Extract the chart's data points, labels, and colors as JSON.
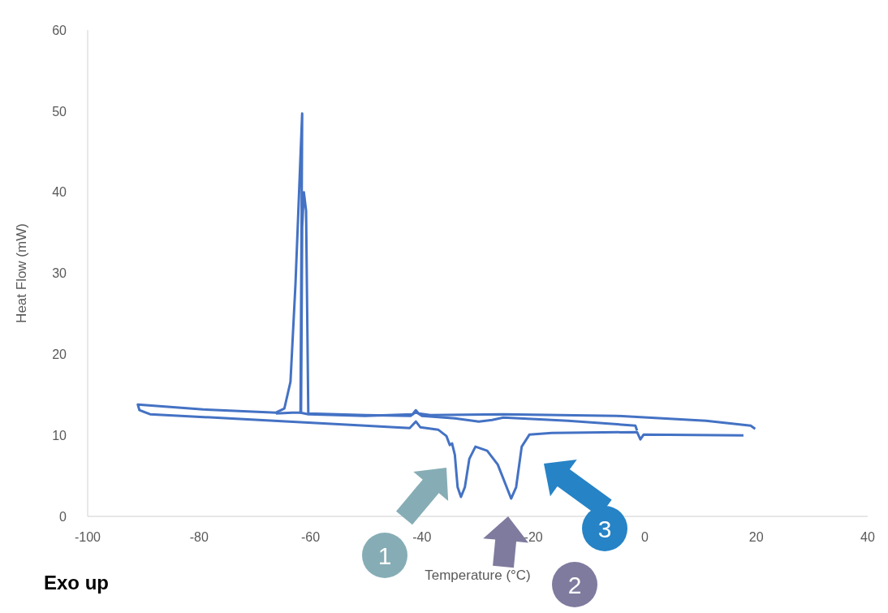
{
  "chart_data": {
    "type": "line",
    "xlabel": "Temperature (°C)",
    "ylabel": "Heat Flow (mW)",
    "xlim": [
      -100,
      40
    ],
    "xticks": [
      -100,
      -80,
      -60,
      -40,
      -20,
      0,
      20,
      40
    ],
    "ylim": [
      0,
      60
    ],
    "yticks": [
      0,
      10,
      20,
      30,
      40,
      50,
      60
    ],
    "grid": false,
    "marker": "none",
    "line_style": "solid",
    "annotations": [
      "Exo up",
      "1",
      "2",
      "3"
    ],
    "series": [
      {
        "color": "#4472c4",
        "x": [
          19.8,
          19.0,
          11.0,
          -5.0,
          -25.4,
          -38.5,
          -40.6,
          -41.1,
          -41.7,
          -50.2,
          -60.4,
          -61.8,
          -61.5,
          -62.7,
          -63.6,
          -64.7,
          -66.2,
          -79.3,
          -91.0,
          -90.7,
          -88.8,
          -72.0,
          -50.2,
          -42.2,
          -41.1,
          -40.3,
          -37.1,
          -35.6,
          -35.0,
          -34.6,
          -34.1,
          -33.6,
          -33.0,
          -32.3,
          -31.5,
          -30.4,
          -28.3,
          -26.4,
          -24.8,
          -24.0,
          -23.1,
          -22.1,
          -20.7,
          -16.7,
          -1.4,
          -0.8,
          -0.2,
          17.7
        ],
        "values": [
          10.8,
          11.2,
          11.8,
          12.4,
          12.6,
          12.5,
          12.7,
          13.1,
          12.6,
          12.4,
          12.6,
          12.8,
          49.7,
          28.7,
          16.6,
          13.3,
          12.8,
          13.2,
          13.8,
          13.1,
          12.6,
          12.0,
          11.2,
          10.9,
          11.7,
          11.0,
          10.7,
          9.9,
          8.8,
          9.0,
          7.6,
          3.6,
          2.4,
          3.6,
          7.1,
          8.6,
          8.1,
          6.4,
          3.6,
          2.2,
          3.6,
          8.6,
          10.1,
          10.3,
          10.4,
          9.5,
          10.1,
          10.0
        ]
      },
      {
        "color": "#4472c4",
        "x": [
          -1.4,
          -1.7,
          -13.8,
          -25.4,
          -27.4,
          -29.8,
          -34.1,
          -40.0,
          -41.1,
          -42.0,
          -50.2,
          -60.4,
          -60.8,
          -61.2,
          -61.5,
          -61.7,
          -63.3,
          -66.2
        ],
        "values": [
          10.6,
          11.2,
          11.8,
          12.2,
          11.9,
          11.7,
          12.1,
          12.4,
          12.9,
          12.4,
          12.5,
          12.7,
          37.7,
          40.0,
          35.7,
          12.8,
          12.8,
          12.7
        ]
      }
    ]
  }
}
